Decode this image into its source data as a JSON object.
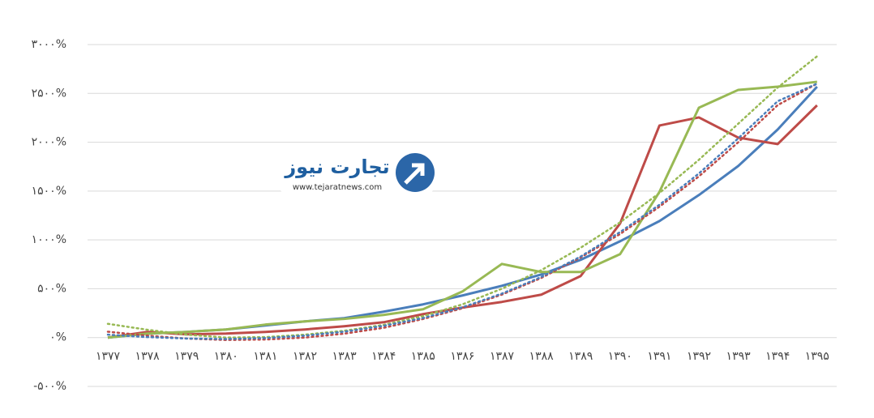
{
  "chart_data": {
    "type": "line",
    "categories": [
      "۱۳۷۷",
      "۱۳۷۸",
      "۱۳۷۹",
      "۱۳۸۰",
      "۱۳۸۱",
      "۱۳۸۲",
      "۱۳۸۳",
      "۱۳۸۴",
      "۱۳۸۵",
      "۱۳۸۶",
      "۱۳۸۷",
      "۱۳۸۸",
      "۱۳۸۹",
      "۱۳۹۰",
      "۱۳۹۱",
      "۱۳۹۲",
      "۱۳۹۳",
      "۱۳۹۴",
      "۱۳۹۵"
    ],
    "series": [
      {
        "color": "#4a7ebb",
        "style": "solid",
        "values": [
          0,
          40,
          58,
          83,
          124,
          166,
          199,
          265,
          340,
          431,
          530,
          646,
          796,
          986,
          1193,
          1459,
          1757,
          2130,
          2569
        ]
      },
      {
        "color": "#be4b48",
        "style": "solid",
        "values": [
          0,
          58,
          33,
          41,
          58,
          83,
          116,
          157,
          240,
          307,
          365,
          439,
          630,
          1168,
          2171,
          2254,
          2047,
          1981,
          2378
        ]
      },
      {
        "color": "#98b954",
        "style": "solid",
        "values": [
          0,
          41,
          58,
          83,
          133,
          166,
          191,
          232,
          290,
          472,
          754,
          671,
          671,
          854,
          1492,
          2353,
          2536,
          2569,
          2619
        ]
      },
      {
        "color": "#98b954",
        "style": "dotted",
        "values": [
          141,
          80,
          30,
          0,
          5,
          30,
          70,
          130,
          220,
          340,
          500,
          690,
          920,
          1180,
          1480,
          1820,
          2190,
          2560,
          2880
        ]
      },
      {
        "color": "#be4b48",
        "style": "dotted",
        "values": [
          60,
          20,
          -10,
          -25,
          -20,
          0,
          40,
          100,
          190,
          300,
          440,
          610,
          820,
          1060,
          1340,
          1650,
          2000,
          2380,
          2600
        ]
      },
      {
        "color": "#4a7ebb",
        "style": "dotted",
        "values": [
          30,
          5,
          -10,
          -15,
          -5,
          20,
          60,
          120,
          200,
          310,
          450,
          620,
          830,
          1080,
          1360,
          1680,
          2040,
          2420,
          2600
        ]
      }
    ],
    "ylim": [
      -500,
      3000
    ],
    "yticks": [
      {
        "value": -500,
        "label": "-۵۰۰%"
      },
      {
        "value": 0,
        "label": "۰%"
      },
      {
        "value": 500,
        "label": "۵۰۰%"
      },
      {
        "value": 1000,
        "label": "۱۰۰۰%"
      },
      {
        "value": 1500,
        "label": "۱۵۰۰%"
      },
      {
        "value": 2000,
        "label": "۲۰۰۰%"
      },
      {
        "value": 2500,
        "label": "۲۵۰۰%"
      },
      {
        "value": 3000,
        "label": "۳۰۰۰%"
      }
    ],
    "grid": true
  },
  "logo": {
    "name": "تجارت نیوز",
    "url": "www.tejaratnews.com"
  }
}
